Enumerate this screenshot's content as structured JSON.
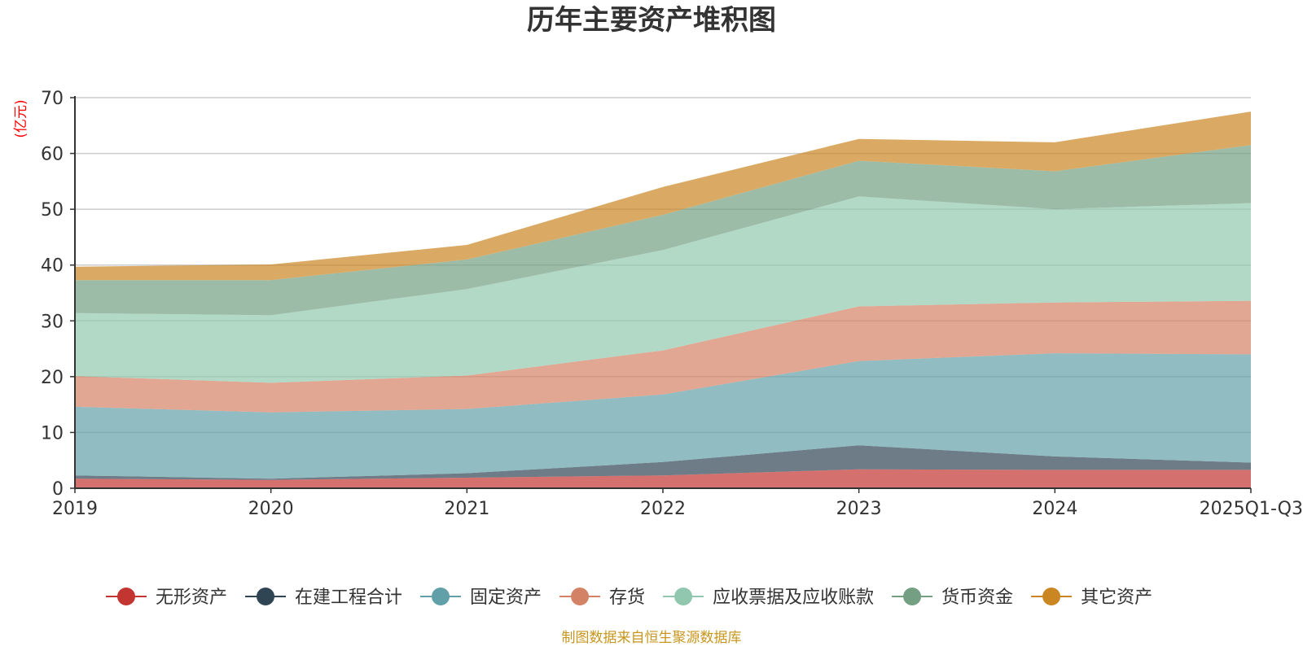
{
  "chart_data": {
    "type": "area",
    "stacked": true,
    "title": "历年主要资产堆积图",
    "unit_label": "(亿元)",
    "source_note": "制图数据来自恒生聚源数据库",
    "categories": [
      "2019",
      "2020",
      "2021",
      "2022",
      "2023",
      "2024",
      "2025Q1-Q3"
    ],
    "y_ticks": [
      0,
      10,
      20,
      30,
      40,
      50,
      60,
      70
    ],
    "ylim": [
      0,
      70
    ],
    "grid": true,
    "legend_position": "bottom",
    "series": [
      {
        "name": "无形资产",
        "color": "#c23531",
        "values": [
          1.7,
          1.5,
          1.9,
          2.3,
          3.4,
          3.3,
          3.3
        ]
      },
      {
        "name": "在建工程合计",
        "color": "#2f4554",
        "values": [
          0.6,
          0.2,
          0.8,
          2.4,
          4.3,
          2.4,
          1.3
        ]
      },
      {
        "name": "固定资产",
        "color": "#61a0a8",
        "values": [
          12.3,
          11.9,
          11.5,
          12.1,
          15.1,
          18.5,
          19.4
        ]
      },
      {
        "name": "存货",
        "color": "#d48265",
        "values": [
          5.5,
          5.3,
          6.0,
          7.9,
          9.8,
          9.1,
          9.6
        ]
      },
      {
        "name": "应收票据及应收账款",
        "color": "#91c7ae",
        "values": [
          11.3,
          12.1,
          15.5,
          18.0,
          19.7,
          16.7,
          17.5
        ]
      },
      {
        "name": "货币资金",
        "color": "#749f83",
        "values": [
          5.9,
          6.3,
          5.3,
          6.3,
          6.4,
          6.8,
          10.4
        ]
      },
      {
        "name": "其它资产",
        "color": "#ca8622",
        "values": [
          2.4,
          2.8,
          2.6,
          5.0,
          3.9,
          5.2,
          6.0
        ]
      }
    ]
  }
}
